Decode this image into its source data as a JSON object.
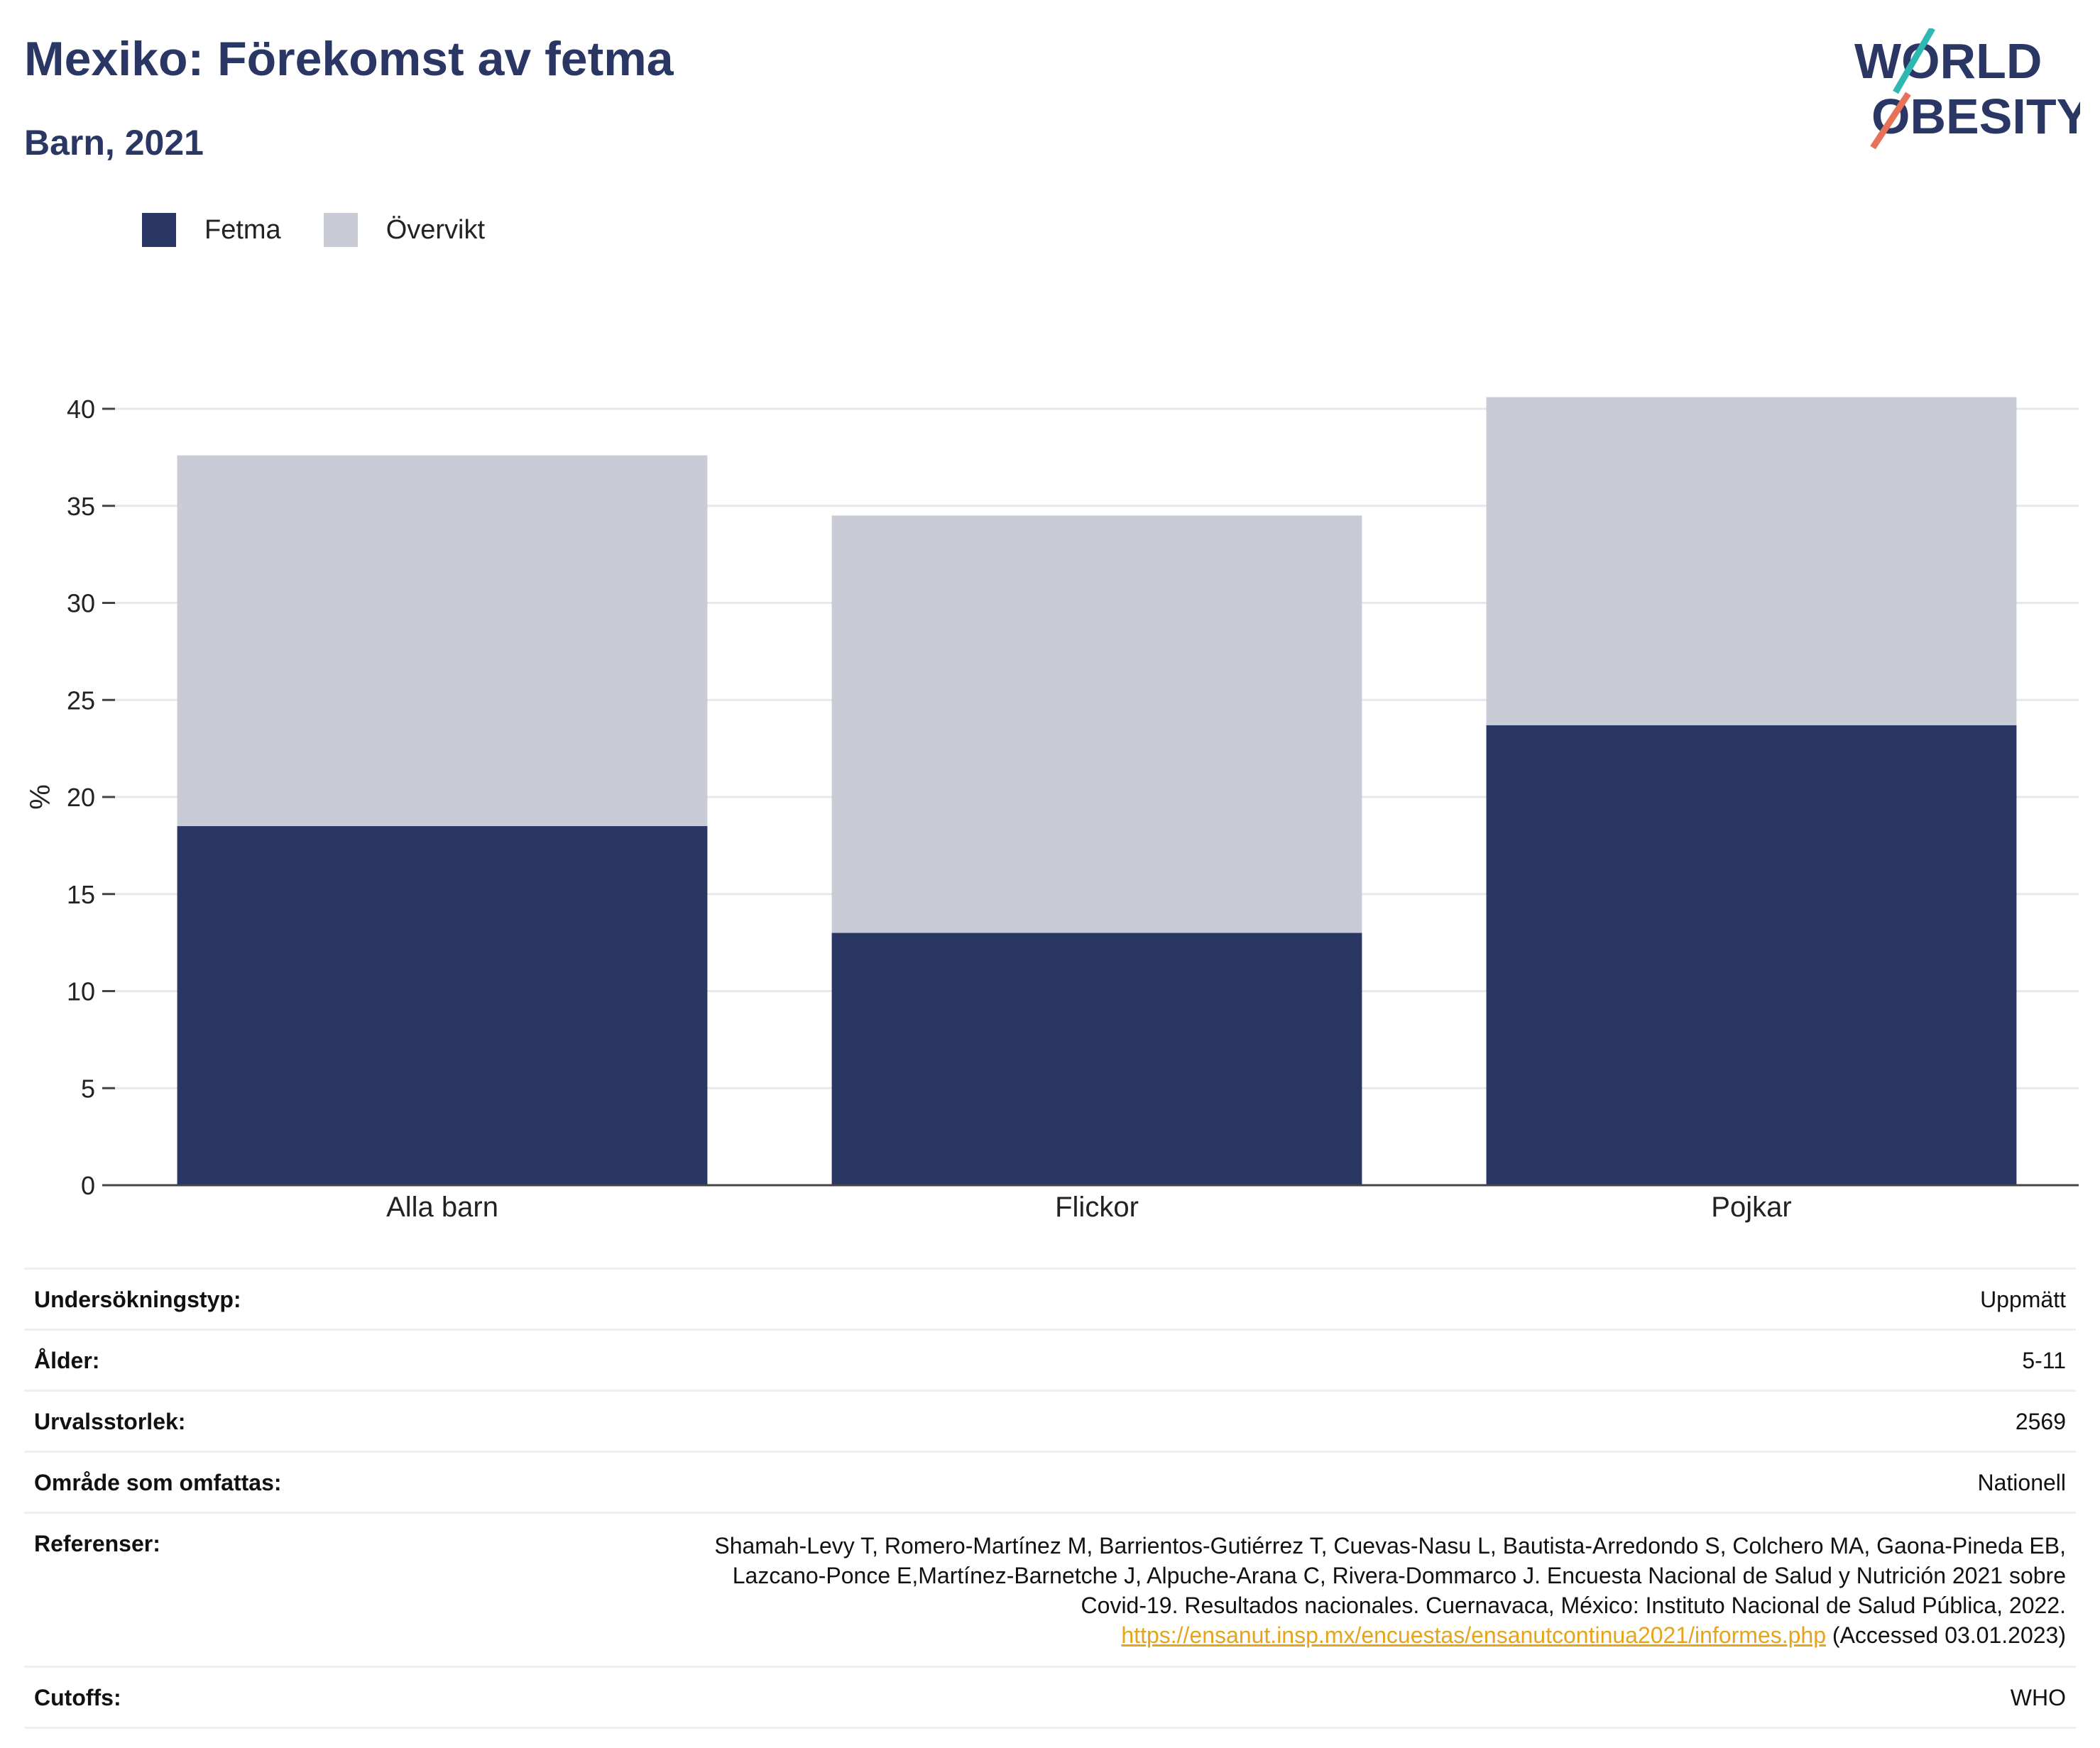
{
  "header": {
    "title": "Mexiko: Förekomst av fetma",
    "subtitle": "Barn, 2021",
    "logo_text_line1": "WORLD",
    "logo_text_line2": "OBESITY"
  },
  "legend": [
    {
      "label": "Fetma",
      "color": "#2a3764"
    },
    {
      "label": "Övervikt",
      "color": "#c9cbd7"
    }
  ],
  "chart_data": {
    "type": "bar",
    "stacked": true,
    "categories": [
      "Alla barn",
      "Flickor",
      "Pojkar"
    ],
    "series": [
      {
        "name": "Fetma",
        "values": [
          18.5,
          13.0,
          23.7
        ],
        "color": "#2a3764"
      },
      {
        "name": "Övervikt",
        "values": [
          19.1,
          21.5,
          16.9
        ],
        "color": "#c9cbd7"
      }
    ],
    "ylabel": "%",
    "ylim": [
      0,
      40
    ],
    "yticks": [
      0,
      5,
      10,
      15,
      20,
      25,
      30,
      35,
      40
    ],
    "grid": true
  },
  "meta": {
    "survey_type": {
      "label": "Undersökningstyp:",
      "value": "Uppmätt"
    },
    "age": {
      "label": "Ålder:",
      "value": "5-11"
    },
    "sample_size": {
      "label": "Urvalsstorlek:",
      "value": "2569"
    },
    "area": {
      "label": "Område som omfattas:",
      "value": "Nationell"
    },
    "references": {
      "label": "Referenser:",
      "line1": "Shamah-Levy T, Romero-Martínez M, Barrientos-Gutiérrez T, Cuevas-Nasu L, Bautista-Arredondo S, Colchero MA, Gaona-Pineda EB,",
      "line2": "Lazcano-Ponce E,Martínez-Barnetche J, Alpuche-Arana C, Rivera-Dommarco J. Encuesta Nacional de Salud y Nutrición 2021 sobre",
      "line3": "Covid-19. Resultados nacionales. Cuernavaca, México: Instituto Nacional de Salud Pública, 2022.",
      "link": "https://ensanut.insp.mx/encuestas/ensanutcontinua2021/informes.php",
      "accessed": " (Accessed 03.01.2023)"
    },
    "cutoffs": {
      "label": "Cutoffs:",
      "value": "WHO"
    }
  }
}
